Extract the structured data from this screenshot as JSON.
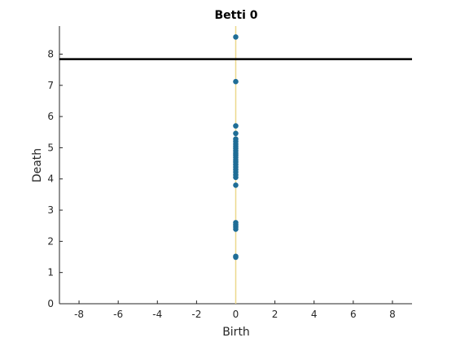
{
  "chart_data": {
    "type": "scatter",
    "title": "Betti 0",
    "xlabel": "Birth",
    "ylabel": "Death",
    "xlim": [
      -9,
      9
    ],
    "ylim": [
      0,
      8.9
    ],
    "xticks": [
      -8,
      -6,
      -4,
      -2,
      0,
      2,
      4,
      6,
      8
    ],
    "yticks": [
      0,
      1,
      2,
      3,
      4,
      5,
      6,
      7,
      8
    ],
    "grid": false,
    "legend": "none",
    "points": [
      {
        "x": 0,
        "y": 8.55
      },
      {
        "x": 0,
        "y": 7.12
      },
      {
        "x": 0,
        "y": 5.7
      },
      {
        "x": 0,
        "y": 5.46
      },
      {
        "x": 0,
        "y": 5.28
      },
      {
        "x": 0,
        "y": 5.2
      },
      {
        "x": 0,
        "y": 5.12
      },
      {
        "x": 0,
        "y": 5.05
      },
      {
        "x": 0,
        "y": 4.98
      },
      {
        "x": 0,
        "y": 4.9
      },
      {
        "x": 0,
        "y": 4.83
      },
      {
        "x": 0,
        "y": 4.76
      },
      {
        "x": 0,
        "y": 4.69
      },
      {
        "x": 0,
        "y": 4.61
      },
      {
        "x": 0,
        "y": 4.54
      },
      {
        "x": 0,
        "y": 4.46
      },
      {
        "x": 0,
        "y": 4.38
      },
      {
        "x": 0,
        "y": 4.3
      },
      {
        "x": 0,
        "y": 4.22
      },
      {
        "x": 0,
        "y": 4.13
      },
      {
        "x": 0,
        "y": 4.05
      },
      {
        "x": 0,
        "y": 3.8
      },
      {
        "x": 0,
        "y": 2.6
      },
      {
        "x": 0,
        "y": 2.53
      },
      {
        "x": 0,
        "y": 2.46
      },
      {
        "x": 0,
        "y": 2.39
      },
      {
        "x": 0,
        "y": 1.52
      },
      {
        "x": 0,
        "y": 1.49
      }
    ],
    "diagonal_line": {
      "x": 0,
      "color": "#edd88c"
    },
    "threshold_line": {
      "y": 7.84,
      "color": "#000000"
    },
    "point_color": "#1f6d96"
  }
}
